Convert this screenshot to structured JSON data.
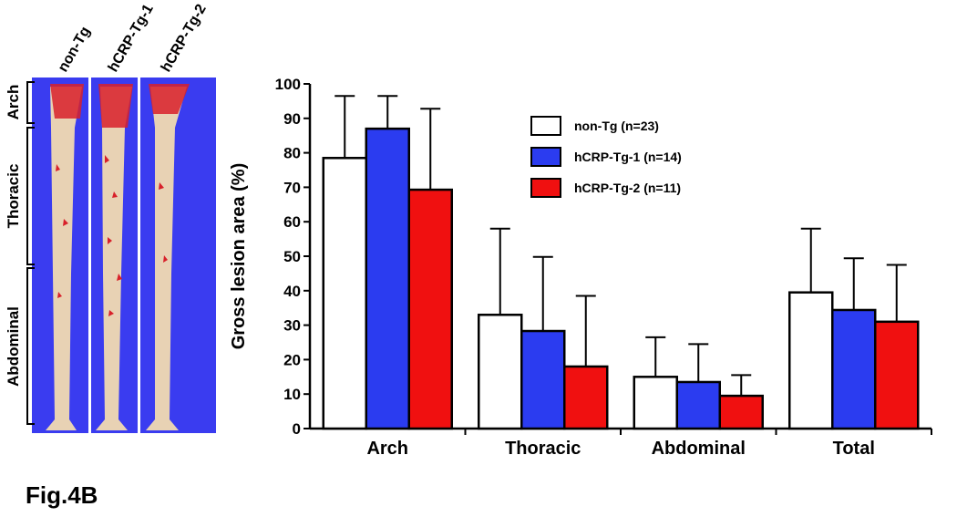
{
  "figure_label": "Fig.4B",
  "photo_panel": {
    "column_labels": [
      "non-Tg",
      "hCRP-Tg-1",
      "hCRP-Tg-2"
    ],
    "region_labels": [
      "Arch",
      "Thoracic",
      "Abdominal"
    ]
  },
  "chart_data": {
    "type": "bar",
    "y_label": "Gross lesion area (%)",
    "categories": [
      "Arch",
      "Thoracic",
      "Abdominal",
      "Total"
    ],
    "series": [
      {
        "name": "non-Tg (n=23)",
        "color": "#ffffff",
        "values": [
          78.5,
          33,
          15,
          39.5
        ],
        "errors": [
          18,
          25,
          11.5,
          18.5
        ]
      },
      {
        "name": "hCRP-Tg-1 (n=14)",
        "color": "#2b3cf0",
        "values": [
          87,
          28.3,
          13.5,
          34.4
        ],
        "errors": [
          9.5,
          21.5,
          11,
          15
        ]
      },
      {
        "name": "hCRP-Tg-2 (n=11)",
        "color": "#f01010",
        "values": [
          69.3,
          18,
          9.5,
          31
        ],
        "errors": [
          23.5,
          20.5,
          6,
          16.5
        ]
      }
    ],
    "ylim": [
      0,
      100
    ],
    "yticks": [
      0,
      10,
      20,
      30,
      40,
      50,
      60,
      70,
      80,
      90,
      100
    ]
  }
}
